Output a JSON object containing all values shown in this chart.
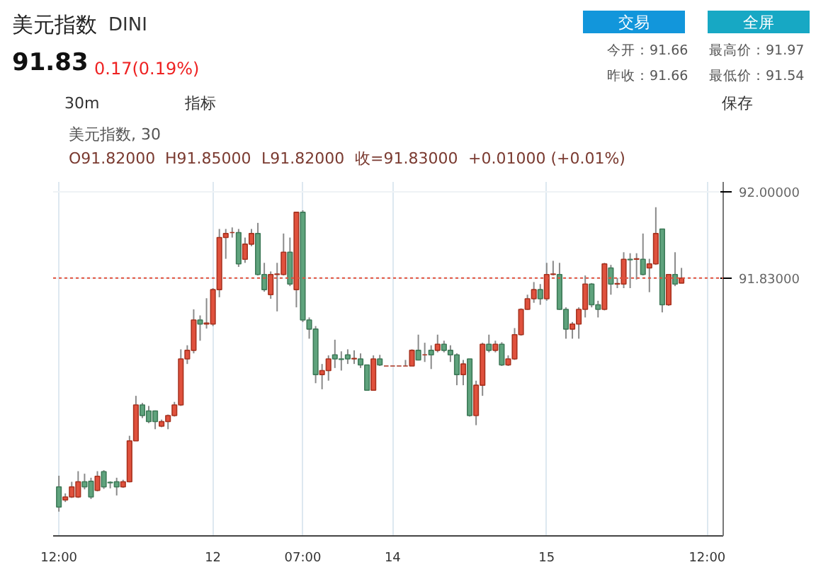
{
  "chart_data": {
    "type": "candlestick",
    "title": "美元指数",
    "subtitle": "DINI",
    "annotations": [
      "91.83",
      "0.17(0.19%)",
      "交易",
      "全屏",
      "今开：91.66",
      "最高价：91.97",
      "昨收：91.66",
      "最低价：91.54",
      "30m",
      "指标",
      "保存",
      "美元指数, 30",
      "O91.82000",
      "H91.85000",
      "L91.82000",
      "收=91.83000",
      "+0.01000 (+0.01%)"
    ],
    "categories": [
      "12:00",
      null,
      null,
      null,
      null,
      null,
      null,
      null,
      null,
      null,
      null,
      null,
      null,
      null,
      null,
      null,
      null,
      null,
      null,
      null,
      null,
      null,
      null,
      null,
      "12",
      null,
      null,
      null,
      null,
      null,
      null,
      null,
      null,
      null,
      null,
      null,
      null,
      null,
      "07:00",
      null,
      null,
      null,
      null,
      null,
      null,
      null,
      null,
      null,
      null,
      null,
      null,
      null,
      "14",
      null,
      null,
      null,
      null,
      null,
      null,
      null,
      null,
      null,
      null,
      null,
      null,
      null,
      null,
      null,
      null,
      null,
      null,
      null,
      null,
      null,
      null,
      null,
      "15",
      null,
      null,
      null,
      null,
      null,
      null,
      null,
      null,
      null,
      null,
      null,
      null,
      null,
      null,
      null,
      null,
      null,
      null,
      null,
      null,
      null,
      null,
      null,
      null,
      "12:00",
      null,
      null
    ],
    "ohlc": [
      [
        91.417,
        91.439,
        91.368,
        91.377
      ],
      [
        91.391,
        91.404,
        91.387,
        91.397
      ],
      [
        91.397,
        91.427,
        91.395,
        91.417
      ],
      [
        91.397,
        91.448,
        91.395,
        91.427
      ],
      [
        91.427,
        91.443,
        91.412,
        91.417
      ],
      [
        91.428,
        91.435,
        91.393,
        91.397
      ],
      [
        91.41,
        91.448,
        91.408,
        91.438
      ],
      [
        91.447,
        91.45,
        91.413,
        91.417
      ],
      [
        91.426,
        91.428,
        91.414,
        91.425
      ],
      [
        91.427,
        91.435,
        91.4,
        91.417
      ],
      [
        91.417,
        91.431,
        91.415,
        91.427
      ],
      [
        91.427,
        91.518,
        91.426,
        91.508
      ],
      [
        91.508,
        91.597,
        91.508,
        91.579
      ],
      [
        91.579,
        91.583,
        91.553,
        91.558
      ],
      [
        91.567,
        91.577,
        91.543,
        91.546
      ],
      [
        91.567,
        91.568,
        91.531,
        91.546
      ],
      [
        91.537,
        91.55,
        91.535,
        91.546
      ],
      [
        91.546,
        91.56,
        91.531,
        91.558
      ],
      [
        91.558,
        91.585,
        91.556,
        91.579
      ],
      [
        91.579,
        91.689,
        91.577,
        91.67
      ],
      [
        91.67,
        91.697,
        91.66,
        91.687
      ],
      [
        91.687,
        91.768,
        91.681,
        91.747
      ],
      [
        91.747,
        91.756,
        91.706,
        91.739
      ],
      [
        91.739,
        91.79,
        91.73,
        91.741
      ],
      [
        91.739,
        91.81,
        91.735,
        91.807
      ],
      [
        91.807,
        91.927,
        91.792,
        91.91
      ],
      [
        91.91,
        91.927,
        91.868,
        91.918
      ],
      [
        91.92,
        91.93,
        91.91,
        91.92
      ],
      [
        91.92,
        91.927,
        91.852,
        91.858
      ],
      [
        91.867,
        91.91,
        91.86,
        91.897
      ],
      [
        91.897,
        91.927,
        91.893,
        91.918
      ],
      [
        91.918,
        91.939,
        91.835,
        91.837
      ],
      [
        91.837,
        91.86,
        91.803,
        91.807
      ],
      [
        91.797,
        91.843,
        91.789,
        91.837
      ],
      [
        91.837,
        91.86,
        91.764,
        91.838
      ],
      [
        91.837,
        91.918,
        91.835,
        91.881
      ],
      [
        91.881,
        91.91,
        91.814,
        91.818
      ],
      [
        91.807,
        91.96,
        91.772,
        91.96
      ],
      [
        91.96,
        91.964,
        91.743,
        91.747
      ],
      [
        91.747,
        91.752,
        91.71,
        91.729
      ],
      [
        91.729,
        91.735,
        91.622,
        91.639
      ],
      [
        91.639,
        91.66,
        91.61,
        91.647
      ],
      [
        91.647,
        91.677,
        91.627,
        91.67
      ],
      [
        91.678,
        91.708,
        91.652,
        91.67
      ],
      [
        91.67,
        91.685,
        91.647,
        91.669
      ],
      [
        91.678,
        91.689,
        91.66,
        91.67
      ],
      [
        91.67,
        91.687,
        91.66,
        91.671
      ],
      [
        91.67,
        91.681,
        91.652,
        91.658
      ],
      [
        91.658,
        91.658,
        91.608,
        91.608
      ],
      [
        91.608,
        91.677,
        91.608,
        91.67
      ],
      [
        91.67,
        91.678,
        91.656,
        91.658
      ],
      [
        91.656,
        91.656,
        91.656,
        91.656
      ],
      [
        91.656,
        91.656,
        91.656,
        91.656
      ],
      [
        91.656,
        91.656,
        91.656,
        91.656
      ],
      [
        91.656,
        91.668,
        91.656,
        91.656
      ],
      [
        91.656,
        91.689,
        91.656,
        91.687
      ],
      [
        91.687,
        91.718,
        91.667,
        91.668
      ],
      [
        91.678,
        91.702,
        91.664,
        91.678
      ],
      [
        91.687,
        91.697,
        91.65,
        91.678
      ],
      [
        91.687,
        91.718,
        91.683,
        91.699
      ],
      [
        91.699,
        91.706,
        91.683,
        91.687
      ],
      [
        91.687,
        91.697,
        91.664,
        91.678
      ],
      [
        91.678,
        91.681,
        91.618,
        91.639
      ],
      [
        91.639,
        91.668,
        91.618,
        91.66
      ],
      [
        91.67,
        91.67,
        91.556,
        91.558
      ],
      [
        91.558,
        91.627,
        91.539,
        91.618
      ],
      [
        91.618,
        91.702,
        91.597,
        91.699
      ],
      [
        91.699,
        91.718,
        91.683,
        91.687
      ],
      [
        91.687,
        91.706,
        91.683,
        91.699
      ],
      [
        91.699,
        91.703,
        91.656,
        91.658
      ],
      [
        91.658,
        91.677,
        91.656,
        91.67
      ],
      [
        91.67,
        91.731,
        91.668,
        91.718
      ],
      [
        91.718,
        91.77,
        91.716,
        91.768
      ],
      [
        91.768,
        91.797,
        91.767,
        91.789
      ],
      [
        91.789,
        91.822,
        91.781,
        91.807
      ],
      [
        91.807,
        91.818,
        91.777,
        91.789
      ],
      [
        91.789,
        91.86,
        91.785,
        91.837
      ],
      [
        91.837,
        91.864,
        91.835,
        91.838
      ],
      [
        91.837,
        91.86,
        91.767,
        91.768
      ],
      [
        91.768,
        91.772,
        91.71,
        91.729
      ],
      [
        91.729,
        91.743,
        91.71,
        91.739
      ],
      [
        91.739,
        91.772,
        91.71,
        91.768
      ],
      [
        91.768,
        91.835,
        91.752,
        91.818
      ],
      [
        91.818,
        91.82,
        91.772,
        91.777
      ],
      [
        91.777,
        91.785,
        91.752,
        91.768
      ],
      [
        91.768,
        91.86,
        91.766,
        91.858
      ],
      [
        91.85,
        91.856,
        91.797,
        91.818
      ],
      [
        91.818,
        91.83,
        91.81,
        91.819
      ],
      [
        91.818,
        91.881,
        91.81,
        91.867
      ],
      [
        91.867,
        91.879,
        91.81,
        91.866
      ],
      [
        91.867,
        91.879,
        91.827,
        91.868
      ],
      [
        91.867,
        91.918,
        91.835,
        91.837
      ],
      [
        91.85,
        91.868,
        91.802,
        91.858
      ],
      [
        91.858,
        91.97,
        91.856,
        91.918
      ],
      [
        91.927,
        91.927,
        91.762,
        91.777
      ],
      [
        91.777,
        91.837,
        91.775,
        91.837
      ],
      [
        91.837,
        91.881,
        91.814,
        91.818
      ],
      [
        91.82,
        91.85,
        91.82,
        91.83
      ],
      null,
      null,
      null,
      null,
      null,
      null
    ],
    "ylim": [
      91.32,
      92.02
    ],
    "yticks": [
      {
        "value": 91.83,
        "label": "91.83000"
      },
      {
        "value": 92,
        "label": "92.00000"
      }
    ],
    "ref_lines": [
      {
        "axis": "y",
        "value": 91.83,
        "color": "#e0513d",
        "line_style": "dotted"
      }
    ],
    "grid": true
  }
}
